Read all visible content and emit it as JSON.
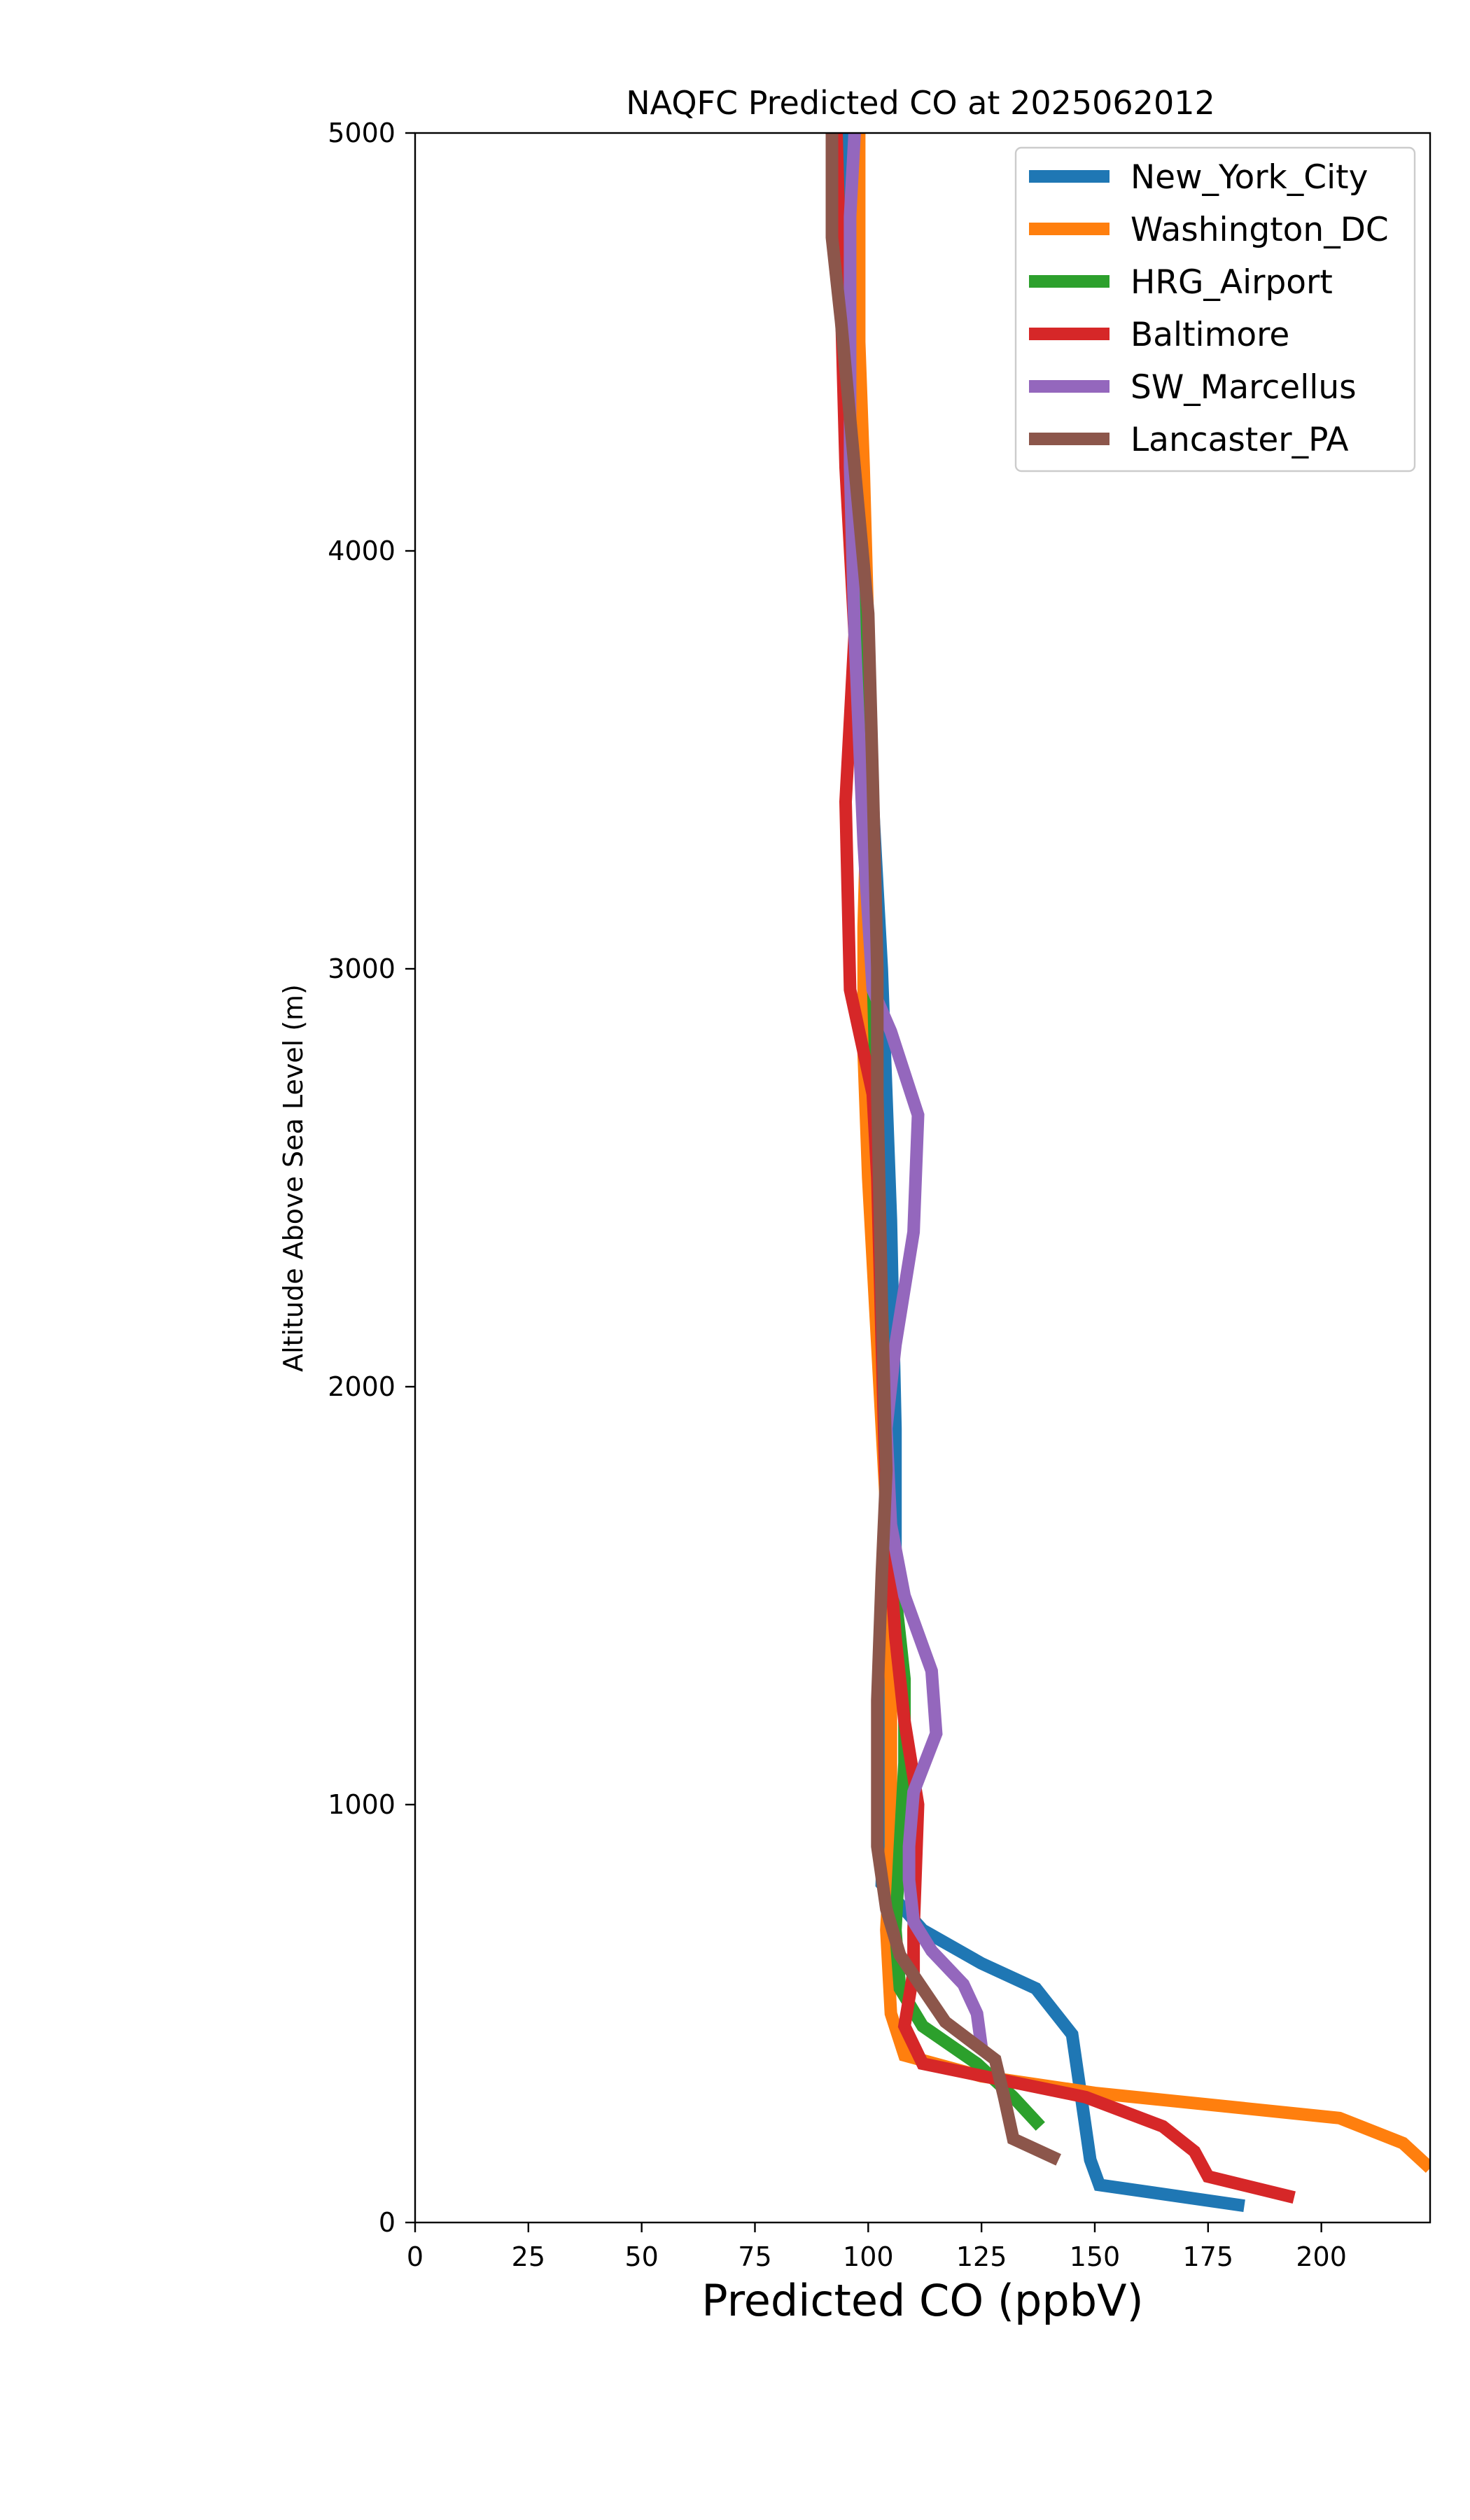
{
  "chart_data": {
    "type": "line",
    "title": "NAQFC Predicted CO at 2025062012",
    "xlabel": "Predicted CO (ppbV)",
    "ylabel": "Altitude Above Sea Level (m)",
    "xlim": [
      0,
      224
    ],
    "ylim": [
      0,
      5000
    ],
    "xticks": [
      "0",
      "25",
      "50",
      "75",
      "100",
      "125",
      "150",
      "175",
      "200"
    ],
    "yticks": [
      "0",
      "1000",
      "2000",
      "3000",
      "4000",
      "5000"
    ],
    "grid": false,
    "legend_position": "top-right",
    "series": [
      {
        "name": "New_York_City",
        "color": "#1f77b4",
        "points": [
          [
            183,
            40
          ],
          [
            151,
            90
          ],
          [
            149,
            150
          ],
          [
            147,
            300
          ],
          [
            145,
            450
          ],
          [
            137,
            560
          ],
          [
            125,
            620
          ],
          [
            112,
            700
          ],
          [
            103,
            810
          ],
          [
            104,
            1200
          ],
          [
            106,
            1500
          ],
          [
            106,
            1900
          ],
          [
            105,
            2400
          ],
          [
            104,
            2700
          ],
          [
            103,
            3000
          ],
          [
            101,
            3400
          ],
          [
            99,
            3800
          ],
          [
            97,
            4200
          ],
          [
            96,
            4600
          ],
          [
            95,
            5000
          ]
        ]
      },
      {
        "name": "Washington_DC",
        "color": "#ff7f0e",
        "points": [
          [
            224,
            130
          ],
          [
            218,
            190
          ],
          [
            204,
            250
          ],
          [
            150,
            310
          ],
          [
            125,
            350
          ],
          [
            108,
            400
          ],
          [
            105,
            500
          ],
          [
            104,
            700
          ],
          [
            105,
            900
          ],
          [
            105,
            1300
          ],
          [
            104,
            1700
          ],
          [
            102,
            2100
          ],
          [
            100,
            2500
          ],
          [
            99,
            2800
          ],
          [
            99,
            3100
          ],
          [
            100,
            3500
          ],
          [
            100,
            3800
          ],
          [
            99,
            4200
          ],
          [
            98,
            4500
          ],
          [
            98,
            5000
          ]
        ]
      },
      {
        "name": "HRG_Airport",
        "color": "#2ca02c",
        "points": [
          [
            138,
            230
          ],
          [
            132,
            300
          ],
          [
            124,
            380
          ],
          [
            112,
            470
          ],
          [
            107,
            560
          ],
          [
            106,
            700
          ],
          [
            107,
            900
          ],
          [
            108,
            1100
          ],
          [
            108,
            1300
          ],
          [
            106,
            1500
          ],
          [
            104,
            1800
          ],
          [
            103,
            2200
          ],
          [
            102,
            2600
          ],
          [
            101,
            3000
          ],
          [
            100,
            3400
          ],
          [
            98,
            3800
          ],
          [
            96,
            4200
          ],
          [
            94,
            4600
          ],
          [
            93,
            5000
          ]
        ]
      },
      {
        "name": "Baltimore",
        "color": "#d62728",
        "points": [
          [
            194,
            60
          ],
          [
            175,
            110
          ],
          [
            172,
            170
          ],
          [
            165,
            230
          ],
          [
            148,
            300
          ],
          [
            112,
            380
          ],
          [
            108,
            470
          ],
          [
            110,
            600
          ],
          [
            110,
            700
          ],
          [
            111,
            1000
          ],
          [
            108,
            1200
          ],
          [
            106,
            1400
          ],
          [
            104,
            1700
          ],
          [
            103,
            2100
          ],
          [
            102,
            2500
          ],
          [
            101,
            2700
          ],
          [
            96,
            2950
          ],
          [
            95,
            3400
          ],
          [
            97,
            3800
          ],
          [
            95,
            4200
          ],
          [
            94,
            4600
          ],
          [
            93,
            5000
          ]
        ]
      },
      {
        "name": "SW_Marcellus",
        "color": "#9467bd",
        "points": [
          [
            125,
            420
          ],
          [
            124,
            500
          ],
          [
            121,
            570
          ],
          [
            114,
            650
          ],
          [
            110,
            720
          ],
          [
            109,
            820
          ],
          [
            109,
            900
          ],
          [
            110,
            1030
          ],
          [
            115,
            1170
          ],
          [
            114,
            1320
          ],
          [
            108,
            1500
          ],
          [
            105,
            1670
          ],
          [
            104,
            1900
          ],
          [
            106,
            2100
          ],
          [
            110,
            2370
          ],
          [
            111,
            2650
          ],
          [
            105,
            2850
          ],
          [
            101,
            2950
          ],
          [
            99,
            3300
          ],
          [
            97,
            3800
          ],
          [
            96,
            4200
          ],
          [
            96,
            4600
          ],
          [
            96,
            4800
          ],
          [
            97,
            5000
          ]
        ]
      },
      {
        "name": "Lancaster_PA",
        "color": "#8c564b",
        "points": [
          [
            142,
            150
          ],
          [
            132,
            200
          ],
          [
            130,
            300
          ],
          [
            128,
            390
          ],
          [
            117,
            480
          ],
          [
            112,
            560
          ],
          [
            107,
            640
          ],
          [
            104,
            750
          ],
          [
            102,
            900
          ],
          [
            102,
            1060
          ],
          [
            102,
            1250
          ],
          [
            103,
            1550
          ],
          [
            104,
            1800
          ],
          [
            103,
            2200
          ],
          [
            102,
            2700
          ],
          [
            102,
            3000
          ],
          [
            101,
            3450
          ],
          [
            100,
            3850
          ],
          [
            97,
            4200
          ],
          [
            94,
            4550
          ],
          [
            92,
            4750
          ],
          [
            92,
            5000
          ]
        ]
      }
    ]
  }
}
